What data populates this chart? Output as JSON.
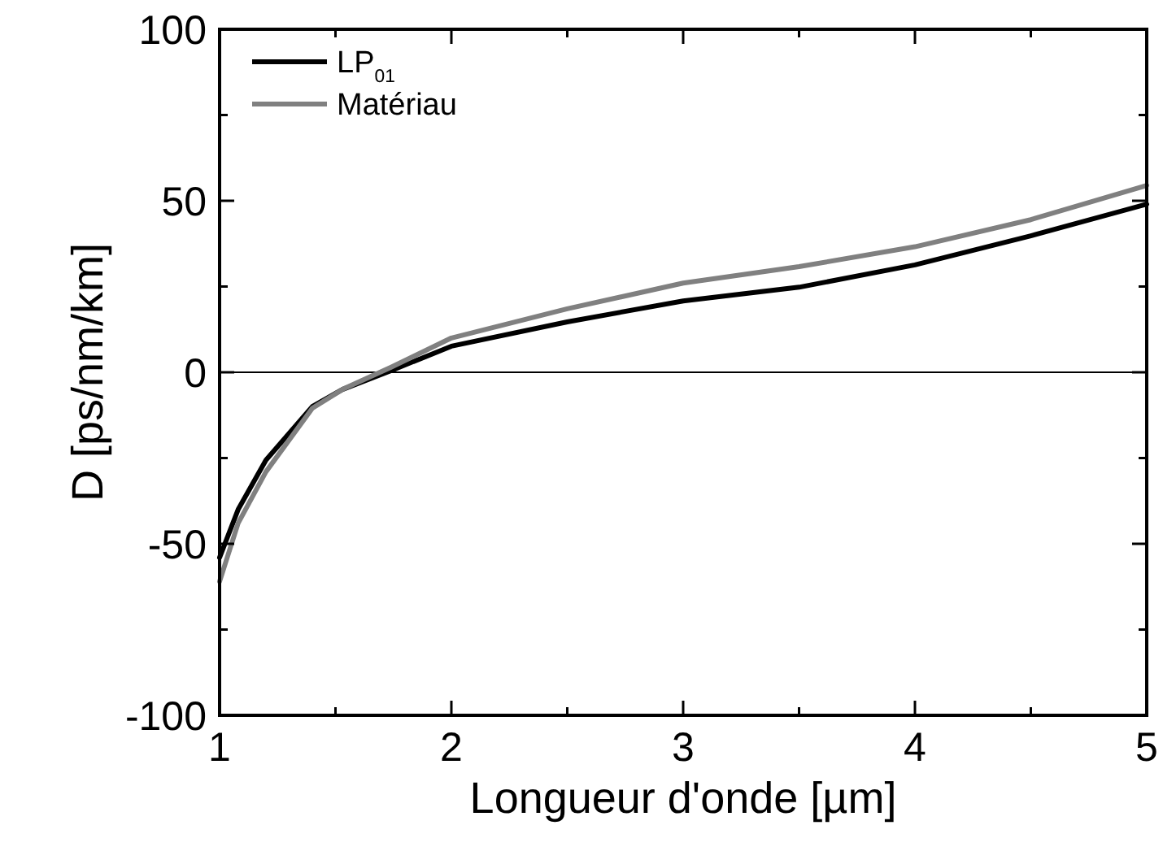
{
  "chart_data": {
    "type": "line",
    "xlabel": "Longueur d'onde [µm]",
    "ylabel": "D [ps/nm/km]",
    "x": [
      1,
      1.08,
      1.2,
      1.4,
      1.53,
      1.74,
      2,
      2.5,
      3,
      3.5,
      4,
      4.5,
      5
    ],
    "series": [
      {
        "name": "LP$_{01}$",
        "color": "#000000",
        "values": [
          -54,
          -40,
          -25.6,
          -10,
          -5,
          0.5,
          7.6,
          14.7,
          20.8,
          24.8,
          31.3,
          39.8,
          49
        ]
      },
      {
        "name": "Matériau",
        "color": "#808080",
        "values": [
          -61,
          -44,
          -29,
          -10.5,
          -5,
          1.5,
          10,
          18.5,
          26,
          30.8,
          36.6,
          44.5,
          54.5
        ]
      }
    ],
    "xlim": [
      1,
      5
    ],
    "xticks": [
      1,
      {
        "value": 1.5,
        "label": null
      },
      2,
      {
        "value": 2.5,
        "label": null
      },
      3,
      {
        "value": 3.5,
        "label": null
      },
      4,
      {
        "value": 4.5,
        "label": null
      },
      5
    ],
    "ylim": [
      -100,
      100
    ],
    "yticks": [
      -100,
      {
        "value": -75,
        "label": null
      },
      -50,
      {
        "value": -25,
        "label": null
      },
      0,
      {
        "value": 25,
        "label": null
      },
      50,
      {
        "value": 75,
        "label": null
      },
      100
    ],
    "ref_lines": [
      {
        "axis": "y",
        "value": 0,
        "color": "#000000"
      }
    ],
    "legend": "top left",
    "grid": false,
    "marker": "none",
    "line_style": "solid"
  }
}
